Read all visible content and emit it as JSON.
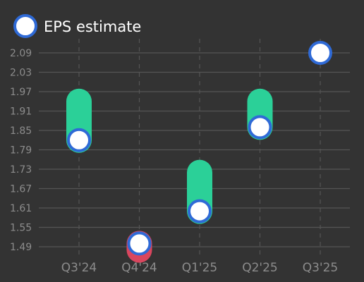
{
  "chart_data": {
    "type": "scatter",
    "categories": [
      "Q3'24",
      "Q4'24",
      "Q1'25",
      "Q2'25",
      "Q3'25"
    ],
    "series": [
      {
        "name": "EPS estimate",
        "values": [
          1.82,
          1.5,
          1.6,
          1.86,
          2.09
        ]
      },
      {
        "name": "",
        "values": [
          1.94,
          1.48,
          1.72,
          1.94,
          null
        ]
      }
    ],
    "y_ticks": [
      "1.49",
      "1.55",
      "1.61",
      "1.67",
      "1.73",
      "1.79",
      "1.85",
      "1.91",
      "1.97",
      "2.03",
      "2.09"
    ],
    "ylim": [
      1.49,
      2.09
    ],
    "grid": true,
    "legend": "top-left",
    "colors": {
      "beat": "#2bd098",
      "miss": "#d9465e",
      "marker_fill": "#ffffff",
      "marker_stroke": "#2f6ad6"
    }
  }
}
